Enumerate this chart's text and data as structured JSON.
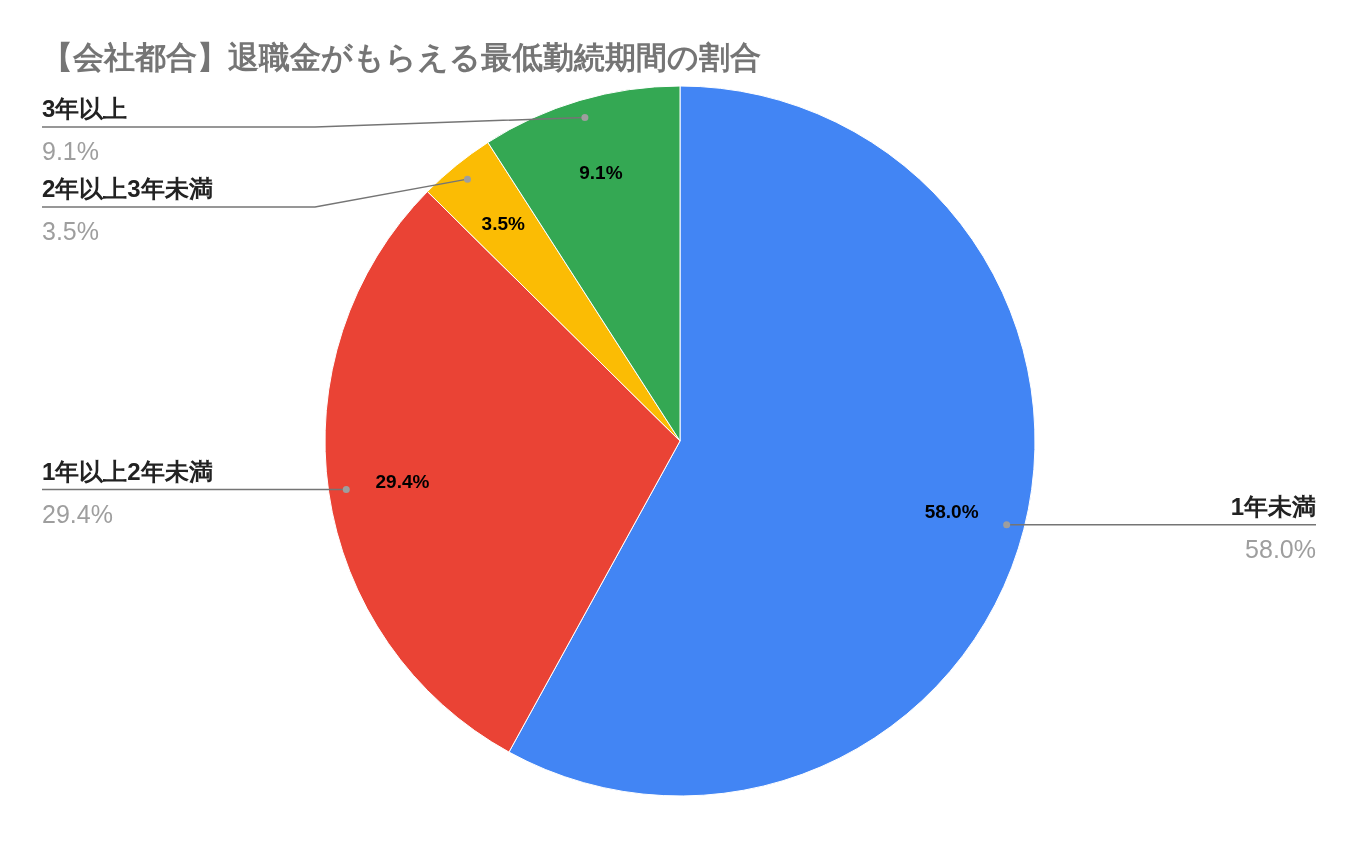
{
  "chart_data": {
    "type": "pie",
    "title": "【会社都合】退職金がもらえる最低勤続期間の割合",
    "categories": [
      "1年未満",
      "1年以上2年未満",
      "2年以上3年未満",
      "3年以上"
    ],
    "values": [
      58.0,
      29.4,
      3.5,
      9.1
    ],
    "colors": [
      "#4285f4",
      "#ea4335",
      "#fbbc04",
      "#34a853"
    ],
    "value_labels": [
      "58.0%",
      "29.4%",
      "3.5%",
      "9.1%"
    ]
  }
}
